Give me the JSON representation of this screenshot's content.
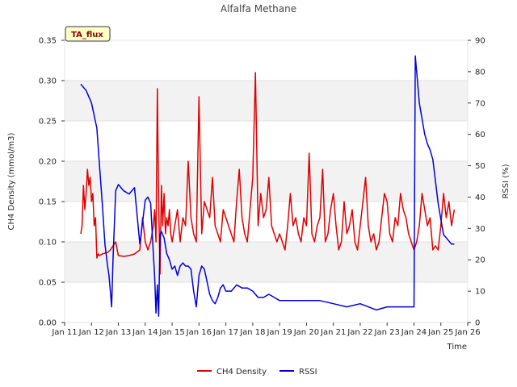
{
  "chart_data": {
    "type": "line",
    "title": "Alfalfa Methane",
    "xlabel": "Time",
    "ylabel": "CH4 Density (mmol/m3)",
    "y2label": "RSSI (%)",
    "badge": "TA_flux",
    "xlim": [
      11,
      26
    ],
    "ylim": [
      0,
      0.35
    ],
    "y2lim": [
      0,
      90
    ],
    "x_ticks": [
      11,
      12,
      13,
      14,
      15,
      16,
      17,
      18,
      19,
      20,
      21,
      22,
      23,
      24,
      25,
      26
    ],
    "x_tick_labels": [
      "Jan 11",
      "Jan 12",
      "Jan 13",
      "Jan 14",
      "Jan 15",
      "Jan 16",
      "Jan 17",
      "Jan 18",
      "Jan 19",
      "Jan 20",
      "Jan 21",
      "Jan 22",
      "Jan 23",
      "Jan 24",
      "Jan 25",
      "Jan 26"
    ],
    "y_ticks": [
      0,
      0.05,
      0.1,
      0.15,
      0.2,
      0.25,
      0.3,
      0.35
    ],
    "y_tick_labels": [
      "0.00",
      "0.05",
      "0.10",
      "0.15",
      "0.20",
      "0.25",
      "0.30",
      "0.35"
    ],
    "y2_ticks": [
      0,
      10,
      20,
      30,
      40,
      50,
      60,
      70,
      80,
      90
    ],
    "y2_tick_labels": [
      "0",
      "10",
      "20",
      "30",
      "40",
      "50",
      "60",
      "70",
      "80",
      "90"
    ],
    "legend": [
      {
        "name": "CH4 Density",
        "color": "#e00000"
      },
      {
        "name": "RSSI",
        "color": "#0000dd"
      }
    ],
    "series": [
      {
        "name": "CH4 Density",
        "axis": "left",
        "color": "#e00000",
        "x": [
          11.6,
          11.65,
          11.7,
          11.75,
          11.8,
          11.85,
          11.9,
          11.95,
          12.0,
          12.05,
          12.1,
          12.15,
          12.2,
          12.25,
          12.3,
          12.4,
          12.5,
          12.6,
          12.7,
          12.8,
          12.9,
          13.0,
          13.2,
          13.4,
          13.6,
          13.8,
          13.9,
          14.0,
          14.1,
          14.2,
          14.3,
          14.35,
          14.4,
          14.45,
          14.5,
          14.55,
          14.6,
          14.65,
          14.7,
          14.75,
          14.8,
          14.85,
          14.9,
          14.95,
          15.0,
          15.1,
          15.2,
          15.3,
          15.4,
          15.5,
          15.6,
          15.7,
          15.8,
          15.9,
          16.0,
          16.1,
          16.2,
          16.3,
          16.4,
          16.5,
          16.6,
          16.7,
          16.8,
          16.9,
          17.0,
          17.1,
          17.2,
          17.3,
          17.4,
          17.5,
          17.6,
          17.7,
          17.8,
          17.9,
          18.0,
          18.1,
          18.2,
          18.3,
          18.4,
          18.5,
          18.6,
          18.7,
          18.8,
          18.9,
          19.0,
          19.1,
          19.2,
          19.3,
          19.4,
          19.5,
          19.6,
          19.7,
          19.8,
          19.9,
          20.0,
          20.1,
          20.2,
          20.3,
          20.4,
          20.5,
          20.6,
          20.7,
          20.8,
          20.9,
          21.0,
          21.1,
          21.2,
          21.3,
          21.4,
          21.5,
          21.6,
          21.7,
          21.8,
          21.9,
          22.0,
          22.1,
          22.2,
          22.3,
          22.4,
          22.5,
          22.6,
          22.7,
          22.8,
          22.9,
          23.0,
          23.1,
          23.2,
          23.3,
          23.4,
          23.5,
          23.6,
          23.7,
          23.8,
          23.9,
          24.0,
          24.1,
          24.2,
          24.3,
          24.4,
          24.5,
          24.6,
          24.7,
          24.8,
          24.9,
          25.0,
          25.1,
          25.2,
          25.3,
          25.4,
          25.5
        ],
        "values": [
          0.11,
          0.12,
          0.17,
          0.14,
          0.16,
          0.19,
          0.17,
          0.18,
          0.15,
          0.16,
          0.12,
          0.13,
          0.08,
          0.085,
          0.083,
          0.085,
          0.086,
          0.087,
          0.09,
          0.095,
          0.1,
          0.083,
          0.082,
          0.083,
          0.085,
          0.09,
          0.13,
          0.1,
          0.09,
          0.1,
          0.12,
          0.14,
          0.1,
          0.29,
          0.15,
          0.06,
          0.17,
          0.12,
          0.16,
          0.11,
          0.13,
          0.12,
          0.14,
          0.11,
          0.1,
          0.12,
          0.14,
          0.1,
          0.13,
          0.12,
          0.2,
          0.13,
          0.11,
          0.1,
          0.28,
          0.11,
          0.15,
          0.14,
          0.13,
          0.18,
          0.12,
          0.11,
          0.1,
          0.14,
          0.13,
          0.12,
          0.11,
          0.1,
          0.15,
          0.19,
          0.13,
          0.11,
          0.1,
          0.14,
          0.18,
          0.31,
          0.12,
          0.16,
          0.13,
          0.14,
          0.18,
          0.12,
          0.11,
          0.1,
          0.11,
          0.1,
          0.09,
          0.12,
          0.16,
          0.12,
          0.13,
          0.11,
          0.1,
          0.13,
          0.12,
          0.21,
          0.11,
          0.1,
          0.12,
          0.13,
          0.19,
          0.1,
          0.11,
          0.14,
          0.16,
          0.12,
          0.09,
          0.1,
          0.15,
          0.11,
          0.12,
          0.14,
          0.1,
          0.09,
          0.12,
          0.15,
          0.18,
          0.12,
          0.1,
          0.11,
          0.09,
          0.1,
          0.13,
          0.16,
          0.15,
          0.11,
          0.1,
          0.13,
          0.12,
          0.16,
          0.14,
          0.13,
          0.11,
          0.1,
          0.09,
          0.1,
          0.12,
          0.16,
          0.14,
          0.12,
          0.13,
          0.09,
          0.095,
          0.09,
          0.12,
          0.16,
          0.13,
          0.15,
          0.12,
          0.14
        ]
      },
      {
        "name": "RSSI",
        "axis": "right",
        "color": "#0000dd",
        "x": [
          11.6,
          11.8,
          12.0,
          12.2,
          12.3,
          12.4,
          12.5,
          12.6,
          12.65,
          12.7,
          12.75,
          12.8,
          12.9,
          13.0,
          13.2,
          13.4,
          13.6,
          13.8,
          13.9,
          14.0,
          14.1,
          14.2,
          14.3,
          14.35,
          14.4,
          14.45,
          14.5,
          14.55,
          14.6,
          14.7,
          14.8,
          14.9,
          15.0,
          15.1,
          15.2,
          15.3,
          15.4,
          15.5,
          15.6,
          15.7,
          15.8,
          15.9,
          16.0,
          16.1,
          16.2,
          16.3,
          16.4,
          16.5,
          16.6,
          16.7,
          16.8,
          16.9,
          17.0,
          17.2,
          17.4,
          17.6,
          17.8,
          18.0,
          18.2,
          18.4,
          18.6,
          18.8,
          19.0,
          19.5,
          20.0,
          20.5,
          21.0,
          21.5,
          22.0,
          22.3,
          22.6,
          23.0,
          23.5,
          23.9,
          24.0,
          24.05,
          24.1,
          24.2,
          24.3,
          24.4,
          24.5,
          24.6,
          24.7,
          24.8,
          24.9,
          25.0,
          25.1,
          25.2,
          25.3,
          25.4,
          25.5
        ],
        "values": [
          76,
          74,
          70,
          62,
          50,
          38,
          25,
          18,
          15,
          10,
          5,
          20,
          42,
          44,
          42,
          41,
          43,
          25,
          32,
          39,
          40,
          38,
          22,
          15,
          3,
          12,
          2,
          28,
          29,
          27,
          22,
          20,
          17,
          18,
          15,
          18,
          19,
          18,
          18,
          17,
          10,
          5,
          15,
          18,
          17,
          13,
          9,
          7,
          6,
          8,
          11,
          12,
          10,
          10,
          12,
          11,
          11,
          10,
          8,
          8,
          9,
          8,
          7,
          7,
          7,
          7,
          6,
          5,
          6,
          5,
          4,
          5,
          5,
          5,
          5,
          85,
          80,
          70,
          65,
          60,
          57,
          55,
          52,
          45,
          38,
          33,
          28,
          27,
          26,
          25,
          25
        ]
      }
    ]
  }
}
